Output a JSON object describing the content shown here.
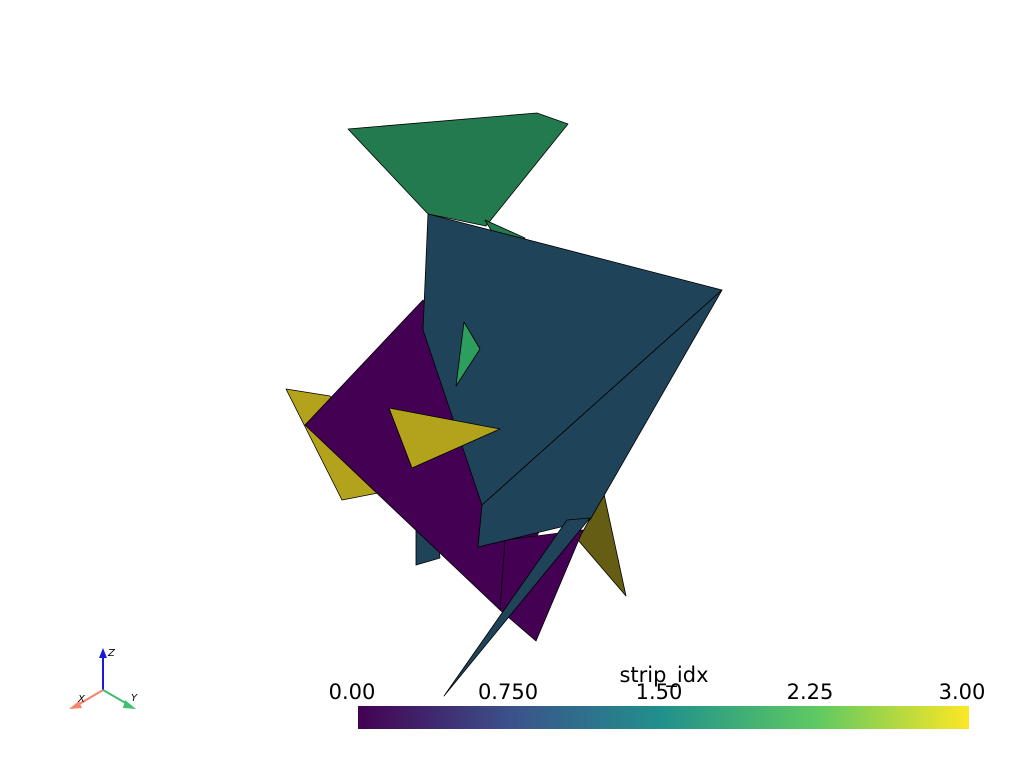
{
  "scalar_bar": {
    "title": "strip_idx",
    "tick_labels": [
      "0.00",
      "0.750",
      "1.50",
      "2.25",
      "3.00"
    ],
    "range": [
      0.0,
      3.0
    ],
    "colormap": "viridis",
    "colormap_stops": [
      "#440154",
      "#3b528b",
      "#21918c",
      "#5ec962",
      "#fde725"
    ]
  },
  "axes_widget": {
    "x_label": "X",
    "y_label": "Y",
    "z_label": "Z",
    "x_color": "#f4856a",
    "y_color": "#3fbf6f",
    "z_color": "#1a1ad6"
  },
  "mesh": {
    "edge_color": "#000000",
    "strip_colors": {
      "0": "#440154",
      "1": "#1f4459",
      "2": "#237a4e",
      "3": "#b3a21b"
    }
  }
}
